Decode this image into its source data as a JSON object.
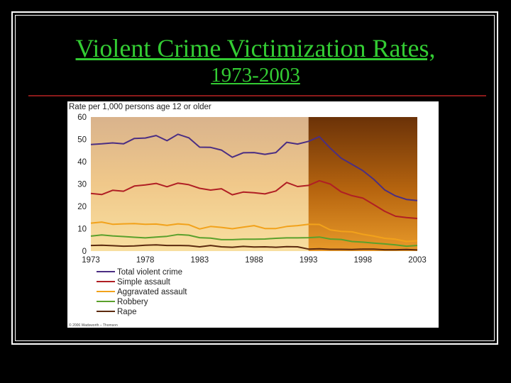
{
  "slide": {
    "title_line1": "Violent Crime Victimization Rates,",
    "title_line2": "1973-2003"
  },
  "chart_data": {
    "type": "line",
    "ylabel": "Rate per 1,000 persons age 12 or older",
    "ylim": [
      0,
      60
    ],
    "yticks": [
      0,
      10,
      20,
      30,
      40,
      50,
      60
    ],
    "xlim": [
      1973,
      2003
    ],
    "xticks": [
      1973,
      1978,
      1983,
      1988,
      1993,
      1998,
      2003
    ],
    "shaded_region_start": 1993,
    "grid": false,
    "legend_position": "bottom",
    "x": [
      1973,
      1974,
      1975,
      1976,
      1977,
      1978,
      1979,
      1980,
      1981,
      1982,
      1983,
      1984,
      1985,
      1986,
      1987,
      1988,
      1989,
      1990,
      1991,
      1992,
      1993,
      1994,
      1995,
      1996,
      1997,
      1998,
      1999,
      2000,
      2001,
      2002,
      2003
    ],
    "series": [
      {
        "name": "Total violent crime",
        "color": "#4b2e83",
        "values": [
          47.7,
          48.0,
          48.4,
          48.0,
          50.4,
          50.6,
          51.7,
          49.4,
          52.3,
          50.7,
          46.5,
          46.4,
          45.2,
          42.0,
          44.0,
          44.1,
          43.3,
          44.1,
          48.7,
          47.9,
          49.1,
          51.2,
          46.1,
          41.6,
          38.8,
          36.0,
          32.1,
          27.4,
          24.7,
          23.1,
          22.6
        ]
      },
      {
        "name": "Simple assault",
        "color": "#b01f24",
        "values": [
          25.8,
          25.3,
          27.2,
          26.8,
          29.1,
          29.6,
          30.3,
          28.8,
          30.4,
          29.7,
          28.1,
          27.3,
          27.9,
          25.2,
          26.4,
          26.1,
          25.6,
          26.9,
          30.7,
          28.9,
          29.4,
          31.5,
          30.0,
          26.5,
          24.8,
          23.7,
          20.8,
          17.8,
          15.6,
          15.0,
          14.6
        ]
      },
      {
        "name": "Aggravated assault",
        "color": "#f2a21b",
        "values": [
          12.5,
          13.0,
          12.0,
          12.2,
          12.3,
          12.0,
          12.1,
          11.5,
          12.2,
          11.8,
          9.9,
          11.0,
          10.6,
          10.0,
          10.7,
          11.4,
          10.1,
          10.1,
          11.0,
          11.4,
          12.0,
          11.9,
          9.5,
          8.8,
          8.6,
          7.5,
          6.7,
          5.7,
          5.3,
          4.3,
          4.6
        ]
      },
      {
        "name": "Robbery",
        "color": "#5aa02c",
        "values": [
          6.7,
          7.2,
          6.8,
          6.5,
          6.2,
          5.9,
          6.3,
          6.6,
          7.4,
          7.1,
          6.0,
          5.8,
          5.1,
          5.1,
          5.3,
          5.3,
          5.4,
          5.7,
          5.9,
          5.9,
          6.0,
          6.3,
          5.4,
          5.2,
          4.3,
          4.0,
          3.6,
          3.2,
          2.8,
          2.2,
          2.5
        ]
      },
      {
        "name": "Rape",
        "color": "#5c2a0e",
        "values": [
          2.5,
          2.6,
          2.4,
          2.2,
          2.3,
          2.6,
          2.8,
          2.5,
          2.5,
          2.4,
          1.9,
          2.5,
          1.9,
          1.7,
          2.1,
          1.8,
          1.9,
          1.7,
          2.0,
          1.9,
          0.9,
          1.0,
          0.8,
          0.8,
          0.7,
          0.9,
          0.9,
          0.6,
          0.6,
          0.7,
          0.5
        ]
      }
    ],
    "source_note": "© 2006 Wadsworth – Thomson"
  }
}
